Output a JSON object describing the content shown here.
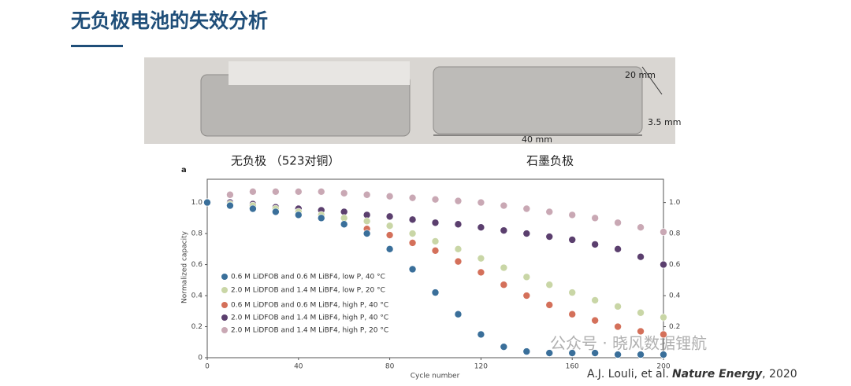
{
  "slide_title": "无负极电池的失效分析",
  "photo_labels": [
    "20 mm",
    "3.5 mm",
    "40 mm"
  ],
  "captions": [
    "无负极 （523对铜）",
    "石墨负极"
  ],
  "citation": {
    "authors": "A.J. Louli, et al.",
    "journal": "Nature Energy",
    "year": ", 2020"
  },
  "watermark": "公众号 · 晓风数据锂航",
  "chart_data": {
    "type": "scatter",
    "panel_label": "a",
    "xlabel": "Cycle number",
    "ylabel": "Normalized capacity",
    "x": [
      0,
      10,
      20,
      30,
      40,
      50,
      60,
      70,
      80,
      90,
      100,
      110,
      120,
      130,
      140,
      150,
      160,
      170,
      180,
      190,
      200
    ],
    "xlim": [
      0,
      200
    ],
    "xticks": [
      0,
      40,
      80,
      120,
      160,
      200
    ],
    "ylim": [
      0,
      1.15
    ],
    "yticks": [
      0,
      0.2,
      0.4,
      0.6,
      0.8,
      {
        "value": 1,
        "label": "1.0"
      }
    ],
    "y2lim": [
      0,
      1.15
    ],
    "y2ticks": [
      0.2,
      0.4,
      0.6,
      0.8,
      {
        "value": 1,
        "label": "1.0"
      }
    ],
    "legend": "lower-left",
    "series": [
      {
        "name": "0.6 M LiDFOB and 0.6 M LiBF4, low P, 40 °C",
        "color": "#3a6f9a",
        "values": [
          1.0,
          0.98,
          0.96,
          0.94,
          0.92,
          0.9,
          0.86,
          0.8,
          0.7,
          0.57,
          0.42,
          0.28,
          0.15,
          0.07,
          0.04,
          0.03,
          0.03,
          0.03,
          0.02,
          0.02,
          0.02
        ]
      },
      {
        "name": "2.0 M LiDFOB and 1.4 M LiBF4, low P, 20 °C",
        "color": "#c9d6a6",
        "values": [
          1.0,
          0.99,
          0.98,
          0.96,
          0.94,
          0.92,
          0.9,
          0.88,
          0.85,
          0.8,
          0.75,
          0.7,
          0.64,
          0.58,
          0.52,
          0.47,
          0.42,
          0.37,
          0.33,
          0.29,
          0.26
        ]
      },
      {
        "name": "0.6 M LiDFOB and 0.6 M LiBF4, high P, 40 °C",
        "color": "#d4705a",
        "values": [
          1.0,
          0.99,
          0.97,
          0.95,
          0.93,
          0.9,
          0.86,
          0.83,
          0.79,
          0.74,
          0.69,
          0.62,
          0.55,
          0.47,
          0.4,
          0.34,
          0.28,
          0.24,
          0.2,
          0.17,
          0.15
        ]
      },
      {
        "name": "2.0 M LiDFOB and 1.4 M LiBF4, high P, 40 °C",
        "color": "#5b3f6e",
        "values": [
          1.0,
          1.0,
          0.99,
          0.97,
          0.96,
          0.95,
          0.94,
          0.92,
          0.91,
          0.89,
          0.87,
          0.86,
          0.84,
          0.82,
          0.8,
          0.78,
          0.76,
          0.73,
          0.7,
          0.65,
          0.6
        ]
      },
      {
        "name": "2.0 M LiDFOB and 1.4 M LiBF4, high P, 20 °C",
        "color": "#c9a8b4",
        "values": [
          1.0,
          1.05,
          1.07,
          1.07,
          1.07,
          1.07,
          1.06,
          1.05,
          1.04,
          1.03,
          1.02,
          1.01,
          1.0,
          0.98,
          0.96,
          0.94,
          0.92,
          0.9,
          0.87,
          0.84,
          0.81
        ]
      }
    ]
  }
}
